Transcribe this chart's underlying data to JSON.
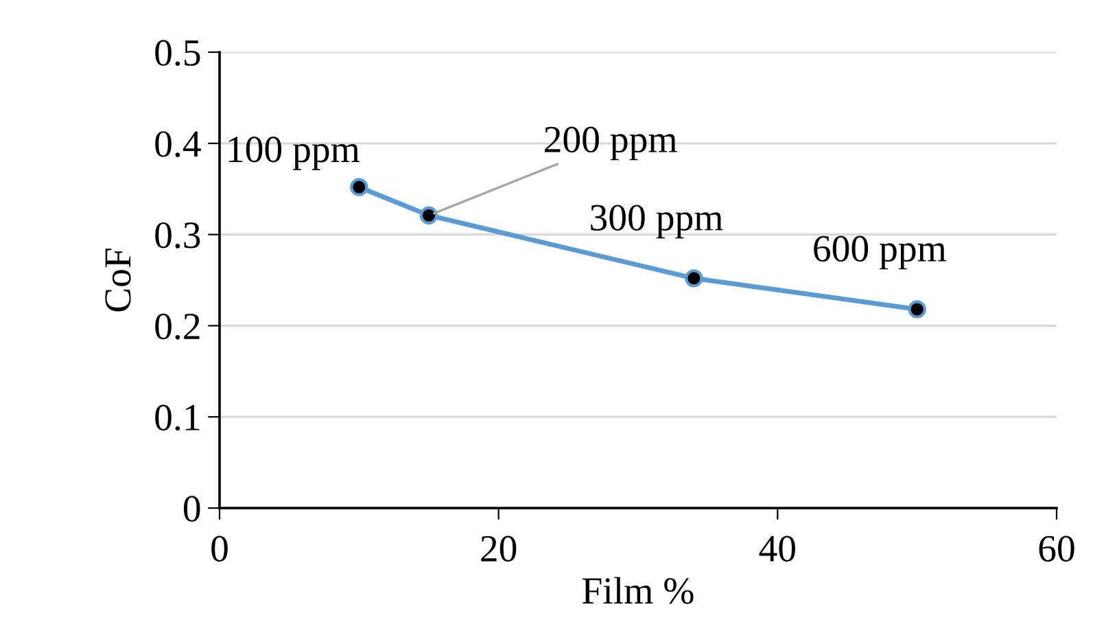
{
  "chart_data": {
    "type": "line",
    "xlabel": "Film %",
    "ylabel": "CoF",
    "x": [
      10,
      15,
      34,
      50
    ],
    "series": [
      {
        "color": "#5b9bd5",
        "values": [
          0.352,
          0.321,
          0.252,
          0.218
        ]
      }
    ],
    "xlim": [
      0,
      60
    ],
    "xticks": [
      0,
      20,
      40,
      60
    ],
    "ylim": [
      0,
      0.5
    ],
    "yticks": [
      0,
      0.1,
      0.2,
      0.3,
      0.4,
      0.5
    ],
    "grid": "y",
    "marker": "circle",
    "line_style": "solid",
    "annotations": [
      {
        "text": "100 ppm",
        "x": 10,
        "y": 0.352
      },
      {
        "text": "200 ppm",
        "x": 15,
        "y": 0.321
      },
      {
        "text": "300 ppm",
        "x": 34,
        "y": 0.252
      },
      {
        "text": "600 ppm",
        "x": 50,
        "y": 0.218
      }
    ]
  }
}
